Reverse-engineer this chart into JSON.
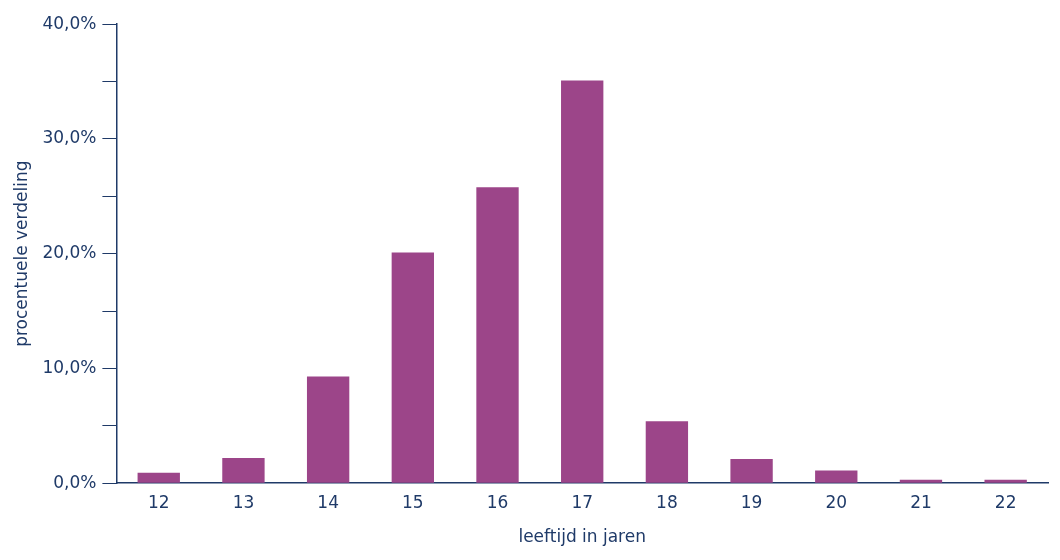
{
  "chart_data": {
    "type": "bar",
    "xlabel": "leeftijd in jaren",
    "ylabel": "procentuele verdeling",
    "categories": [
      "12",
      "13",
      "14",
      "15",
      "16",
      "17",
      "18",
      "19",
      "20",
      "21",
      "22"
    ],
    "values": [
      0.9,
      2.2,
      9.3,
      20.1,
      25.8,
      35.1,
      5.4,
      2.1,
      1.1,
      0.3,
      0.3
    ],
    "color": "#9c4589",
    "ylim": [
      0,
      40
    ],
    "yticks": [
      {
        "value": 0,
        "label": "0,0%"
      },
      {
        "value": 5,
        "label": null
      },
      {
        "value": 10,
        "label": "10,0%"
      },
      {
        "value": 15,
        "label": null
      },
      {
        "value": 20,
        "label": "20,0%"
      },
      {
        "value": 25,
        "label": null
      },
      {
        "value": 30,
        "label": "30,0%"
      },
      {
        "value": 35,
        "label": null
      },
      {
        "value": 40,
        "label": "40,0%"
      }
    ],
    "grid": false,
    "legend": false
  }
}
